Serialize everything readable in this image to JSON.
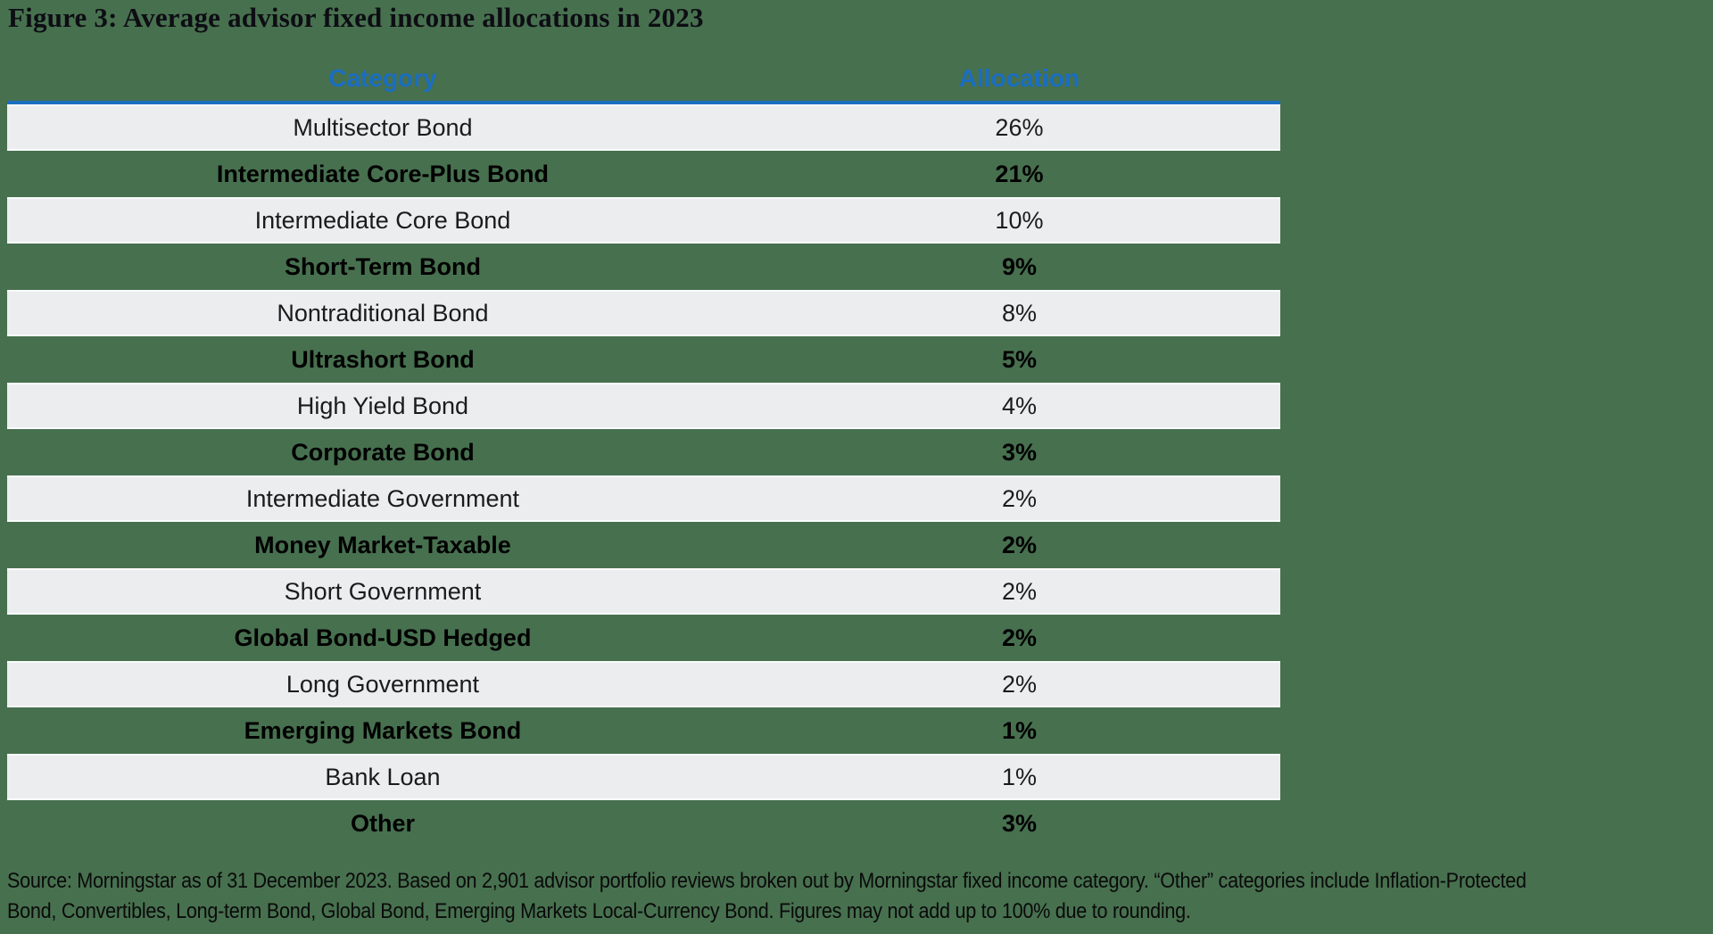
{
  "title": "Figure 3: Average advisor fixed income allocations in 2023",
  "colors": {
    "page_background": "#47704F",
    "row_stripe": "#ECEDEE",
    "header_blue": "#1A6EC1",
    "title_text": "#0D0D13"
  },
  "table": {
    "columns": [
      {
        "label": "Category"
      },
      {
        "label": "Allocation"
      }
    ],
    "rows": [
      {
        "category": "Multisector Bond",
        "allocation": "26%"
      },
      {
        "category": "Intermediate Core-Plus Bond",
        "allocation": "21%"
      },
      {
        "category": "Intermediate Core Bond",
        "allocation": "10%"
      },
      {
        "category": "Short-Term Bond",
        "allocation": "9%"
      },
      {
        "category": "Nontraditional Bond",
        "allocation": "8%"
      },
      {
        "category": "Ultrashort Bond",
        "allocation": "5%"
      },
      {
        "category": "High Yield Bond",
        "allocation": "4%"
      },
      {
        "category": "Corporate Bond",
        "allocation": "3%"
      },
      {
        "category": "Intermediate Government",
        "allocation": "2%"
      },
      {
        "category": "Money Market-Taxable",
        "allocation": "2%"
      },
      {
        "category": "Short Government",
        "allocation": "2%"
      },
      {
        "category": "Global Bond-USD Hedged",
        "allocation": "2%"
      },
      {
        "category": "Long Government",
        "allocation": "2%"
      },
      {
        "category": "Emerging Markets Bond",
        "allocation": "1%"
      },
      {
        "category": "Bank Loan",
        "allocation": "1%"
      },
      {
        "category": "Other",
        "allocation": "3%"
      }
    ]
  },
  "footer": {
    "lines": [
      "Source: Morningstar as of 31 December 2023. Based on 2,901 advisor portfolio reviews broken out by Morningstar fixed income category. “Other” categories include Inflation-Protected",
      "Bond, Convertibles, Long-term Bond, Global Bond, Emerging Markets Local-Currency Bond. Figures may not add up to 100% due to rounding."
    ]
  },
  "chart_data": {
    "type": "table",
    "title": "Figure 3: Average advisor fixed income allocations in 2023",
    "columns": [
      "Category",
      "Allocation"
    ],
    "categories": [
      "Multisector Bond",
      "Intermediate Core-Plus Bond",
      "Intermediate Core Bond",
      "Short-Term Bond",
      "Nontraditional Bond",
      "Ultrashort Bond",
      "High Yield Bond",
      "Corporate Bond",
      "Intermediate Government",
      "Money Market-Taxable",
      "Short Government",
      "Global Bond-USD Hedged",
      "Long Government",
      "Emerging Markets Bond",
      "Bank Loan",
      "Other"
    ],
    "values_pct": [
      26,
      21,
      10,
      9,
      8,
      5,
      4,
      3,
      2,
      2,
      2,
      2,
      2,
      1,
      1,
      3
    ],
    "source_note": "Source: Morningstar as of 31 December 2023. Based on 2,901 advisor portfolio reviews broken out by Morningstar fixed income category. “Other” categories include Inflation-Protected Bond, Convertibles, Long-term Bond, Global Bond, Emerging Markets Local-Currency Bond. Figures may not add up to 100% due to rounding."
  }
}
